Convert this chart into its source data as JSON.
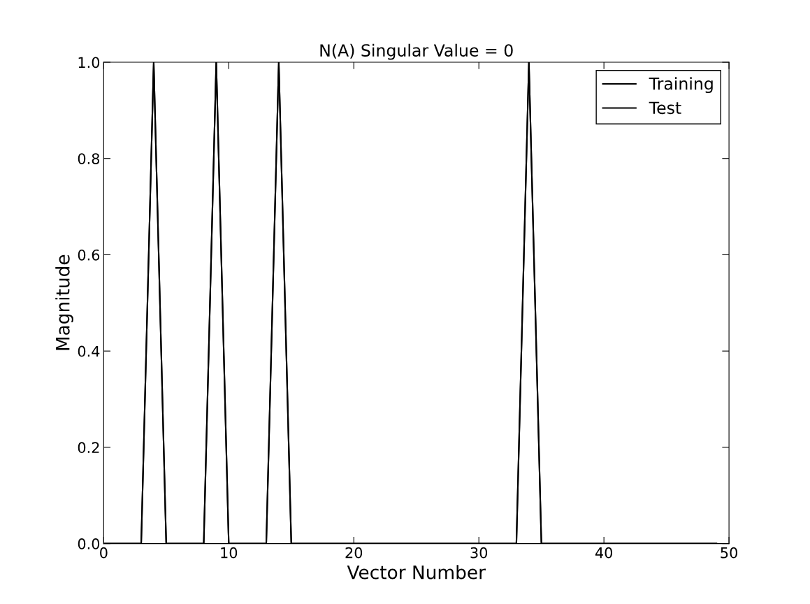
{
  "chart_data": {
    "type": "line",
    "title": "N(A) Singular Value = 0",
    "xlabel": "Vector Number",
    "ylabel": "Magnitude",
    "x": [
      0,
      1,
      2,
      3,
      4,
      5,
      6,
      7,
      8,
      9,
      10,
      11,
      12,
      13,
      14,
      15,
      16,
      17,
      18,
      19,
      20,
      21,
      22,
      23,
      24,
      25,
      26,
      27,
      28,
      29,
      30,
      31,
      32,
      33,
      34,
      35,
      36,
      37,
      38,
      39,
      40,
      41,
      42,
      43,
      44,
      45,
      46,
      47,
      48,
      49
    ],
    "series": [
      {
        "name": "Training",
        "color": "#000000",
        "values": [
          0,
          0,
          0,
          0,
          1,
          0,
          0,
          0,
          0,
          1,
          0,
          0,
          0,
          0,
          1,
          0,
          0,
          0,
          0,
          0,
          0,
          0,
          0,
          0,
          0,
          0,
          0,
          0,
          0,
          0,
          0,
          0,
          0,
          0,
          1,
          0,
          0,
          0,
          0,
          0,
          0,
          0,
          0,
          0,
          0,
          0,
          0,
          0,
          0,
          0
        ]
      },
      {
        "name": "Test",
        "color": "#000000",
        "values": [
          0,
          0,
          0,
          0,
          1,
          0,
          0,
          0,
          0,
          1,
          0,
          0,
          0,
          0,
          1,
          0,
          0,
          0,
          0,
          0,
          0,
          0,
          0,
          0,
          0,
          0,
          0,
          0,
          0,
          0,
          0,
          0,
          0,
          0,
          1,
          0,
          0,
          0,
          0,
          0,
          0,
          0,
          0,
          0,
          0,
          0,
          0,
          0,
          0,
          0
        ]
      }
    ],
    "xlim": [
      0,
      50
    ],
    "xticks": [
      0,
      10,
      20,
      30,
      40,
      50
    ],
    "ylim": [
      0.0,
      1.0
    ],
    "yticks": [
      {
        "value": 0,
        "label": "0.0"
      },
      {
        "value": 0.2,
        "label": "0.2"
      },
      {
        "value": 0.4,
        "label": "0.4"
      },
      {
        "value": 0.6,
        "label": "0.6"
      },
      {
        "value": 0.8,
        "label": "0.8"
      },
      {
        "value": 1.0,
        "label": "1.0"
      }
    ],
    "legend": "top right",
    "grid": false
  }
}
